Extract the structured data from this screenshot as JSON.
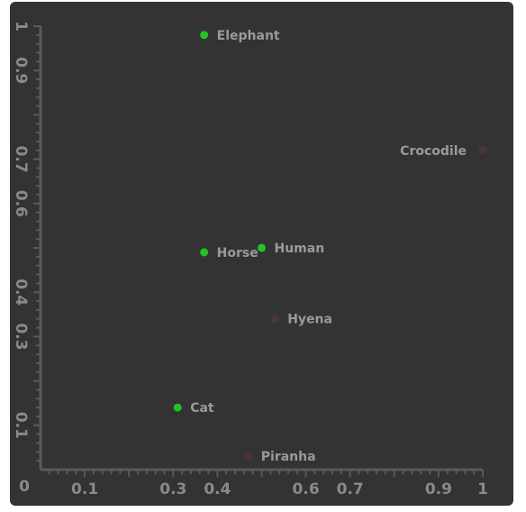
{
  "chart_data": {
    "type": "scatter",
    "title": "",
    "xlabel": "",
    "ylabel": "",
    "xlim": [
      0,
      1
    ],
    "ylim": [
      0,
      1
    ],
    "grid": false,
    "x_tick_labels": [
      "0",
      "0.1",
      "0.3",
      "0.4",
      "0.6",
      "0.7",
      "0.9",
      "1"
    ],
    "y_tick_labels": [
      "1",
      "0.9",
      "0.7",
      "0.6",
      "0.4",
      "0.3",
      "0.1"
    ],
    "points": [
      {
        "label": "Elephant",
        "x": 0.37,
        "y": 0.98,
        "color": "#22c322"
      },
      {
        "label": "Crocodile",
        "x": 1.0,
        "y": 0.72,
        "color": "#4a3636"
      },
      {
        "label": "Human",
        "x": 0.5,
        "y": 0.5,
        "color": "#22c322"
      },
      {
        "label": "Horse",
        "x": 0.37,
        "y": 0.49,
        "color": "#22c322"
      },
      {
        "label": "Hyena",
        "x": 0.53,
        "y": 0.34,
        "color": "#4a3636"
      },
      {
        "label": "Cat",
        "x": 0.31,
        "y": 0.14,
        "color": "#22c322"
      },
      {
        "label": "Piranha",
        "x": 0.47,
        "y": 0.03,
        "color": "#4a3636"
      }
    ]
  },
  "colors": {
    "background": "#333333",
    "axis": "#5a5a5a",
    "tick_text": "#8a8a8a",
    "label_text": "#9a9a9a"
  }
}
